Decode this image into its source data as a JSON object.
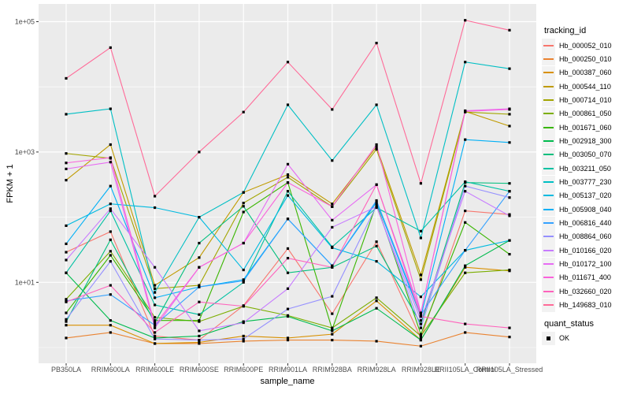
{
  "chart_data": {
    "type": "line",
    "title": "",
    "xlabel": "sample_name",
    "ylabel": "FPKM + 1",
    "y_scale": "log10",
    "y_ticks": [
      {
        "label": "1e+01",
        "value": 10
      },
      {
        "label": "1e+03",
        "value": 1000
      },
      {
        "label": "1e+05",
        "value": 100000
      }
    ],
    "y_minor_values": [
      1,
      100,
      10000
    ],
    "ylim": [
      0.75,
      180000
    ],
    "grid": true,
    "legend_position": "right",
    "point_shape": "filled-square",
    "point_color": "#000000",
    "categories": [
      "PB350LA",
      "RRIM600LA",
      "RRIM600LE",
      "RRIM600SE",
      "RRIM600PE",
      "RRIM901LA",
      "RRIM928BA",
      "RRIM928LA",
      "RRIM928LE",
      "RRII105LA_Control",
      "RRII105LA_Stressed"
    ],
    "series": [
      {
        "name": "Hb_000052_010",
        "color": "#F8766D",
        "values": [
          29,
          60,
          1.5,
          1.3,
          4.4,
          33,
          3.3,
          42,
          1.4,
          125,
          110
        ]
      },
      {
        "name": "Hb_000250_010",
        "color": "#EA8331",
        "values": [
          1.4,
          1.7,
          1.15,
          1.15,
          1.25,
          1.3,
          1.3,
          1.25,
          1.05,
          1.7,
          1.45
        ]
      },
      {
        "name": "Hb_000387_060",
        "color": "#D89000",
        "values": [
          2.2,
          2.2,
          1.15,
          1.2,
          1.5,
          1.4,
          1.6,
          5.2,
          1.3,
          17,
          15
        ]
      },
      {
        "name": "Hb_000544_110",
        "color": "#C09B00",
        "values": [
          370,
          1300,
          9,
          24,
          240,
          450,
          160,
          1200,
          13,
          4200,
          2500
        ]
      },
      {
        "name": "Hb_000714_010",
        "color": "#A3A500",
        "values": [
          950,
          800,
          8,
          9,
          165,
          410,
          145,
          1100,
          11,
          4100,
          3800
        ]
      },
      {
        "name": "Hb_000861_050",
        "color": "#7CAE00",
        "values": [
          5.5,
          30,
          2.9,
          2.5,
          4.3,
          3.1,
          2.0,
          5.8,
          1.5,
          14,
          15.5
        ]
      },
      {
        "name": "Hb_001671_060",
        "color": "#39B600",
        "values": [
          3.4,
          26,
          2.6,
          2.6,
          120,
          340,
          1.9,
          160,
          1.6,
          83,
          27
        ]
      },
      {
        "name": "Hb_002918_300",
        "color": "#00BB4E",
        "values": [
          14,
          2.6,
          1.4,
          1.5,
          2.5,
          3.0,
          1.8,
          4.0,
          1.3,
          18,
          44
        ]
      },
      {
        "name": "Hb_003050_070",
        "color": "#00BF7D",
        "values": [
          2.5,
          45,
          2.4,
          40,
          147,
          14,
          17,
          36,
          2.3,
          340,
          330
        ]
      },
      {
        "name": "Hb_003211_050",
        "color": "#00C1A3",
        "values": [
          14,
          125,
          4.5,
          3.2,
          10,
          250,
          35,
          140,
          61,
          350,
          250
        ]
      },
      {
        "name": "Hb_003777_230",
        "color": "#00BFC4",
        "values": [
          3800,
          4600,
          7,
          100,
          240,
          5300,
          740,
          5300,
          48,
          24000,
          19000
        ]
      },
      {
        "name": "Hb_005137_020",
        "color": "#00BAE0",
        "values": [
          74,
          160,
          140,
          100,
          15.5,
          215,
          34,
          21,
          6,
          31,
          44
        ]
      },
      {
        "name": "Hb_005908_040",
        "color": "#00B0F6",
        "values": [
          39,
          300,
          5.8,
          8.5,
          11,
          94,
          18,
          170,
          3.0,
          1550,
          1400
        ]
      },
      {
        "name": "Hb_006816_440",
        "color": "#35A2FF",
        "values": [
          5.2,
          6.5,
          2.2,
          8.5,
          10.5,
          94,
          18,
          180,
          3.2,
          31,
          250
        ]
      },
      {
        "name": "Hb_008864_060",
        "color": "#9590FF",
        "values": [
          2.7,
          21,
          1.35,
          1.3,
          1.35,
          3.9,
          6.1,
          150,
          2.0,
          300,
          200
        ]
      },
      {
        "name": "Hb_010166_020",
        "color": "#C77CFF",
        "values": [
          22,
          135,
          17,
          1.8,
          2.4,
          8.0,
          70,
          145,
          2.6,
          250,
          105
        ]
      },
      {
        "name": "Hb_010172_100",
        "color": "#E76BF3",
        "values": [
          550,
          700,
          2.0,
          17,
          40,
          650,
          90,
          315,
          3.4,
          4300,
          4600
        ]
      },
      {
        "name": "Hb_011671_400",
        "color": "#FA62DB",
        "values": [
          680,
          820,
          2.2,
          17,
          40,
          340,
          145,
          1300,
          3.4,
          4200,
          4500
        ]
      },
      {
        "name": "Hb_032660_020",
        "color": "#FF62BC",
        "values": [
          5.0,
          9.0,
          1.7,
          5.0,
          4.3,
          23.5,
          17,
          316,
          3.0,
          2.3,
          2.0
        ]
      },
      {
        "name": "Hb_149683_010",
        "color": "#FF6A98",
        "values": [
          13500,
          40000,
          210,
          1000,
          4100,
          24000,
          4500,
          47000,
          330,
          105000,
          74000
        ]
      }
    ]
  },
  "legend": {
    "color_title": "tracking_id",
    "shape_title": "quant_status",
    "shape_items": [
      {
        "label": "OK"
      }
    ]
  },
  "colors": {
    "panel_bg": "#EBEBEB",
    "grid": "#FFFFFF",
    "axis_text": "#4D4D4D",
    "title_text": "#000000",
    "tick_mark": "#333333",
    "legend_key_bg": "#F2F2F2"
  }
}
